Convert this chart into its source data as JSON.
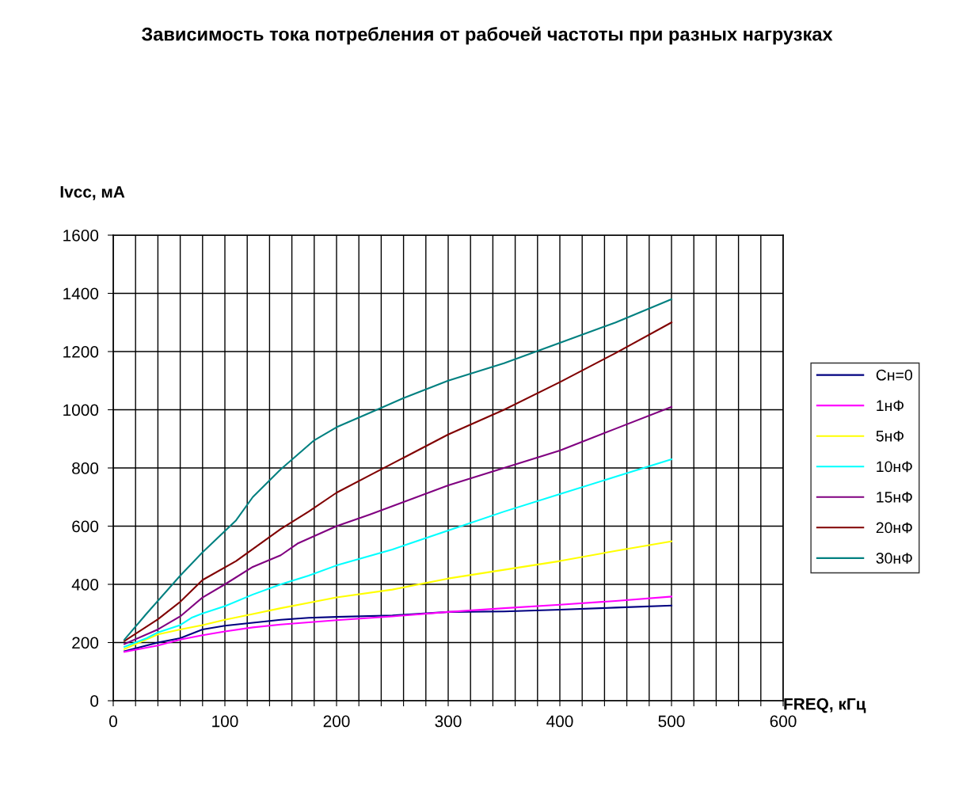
{
  "chart_data": {
    "type": "line",
    "title": "Зависимость тока потребления от рабочей частоты при разных нагрузках",
    "xlabel": "FREQ, кГц",
    "ylabel": "Ivcc, мА",
    "xlim": [
      0,
      600
    ],
    "ylim": [
      0,
      1600
    ],
    "xticks": [
      0,
      {
        "value": 20,
        "label": null
      },
      {
        "value": 40,
        "label": null
      },
      {
        "value": 60,
        "label": null
      },
      {
        "value": 80,
        "label": null
      },
      100,
      {
        "value": 120,
        "label": null
      },
      {
        "value": 140,
        "label": null
      },
      {
        "value": 160,
        "label": null
      },
      {
        "value": 180,
        "label": null
      },
      200,
      {
        "value": 220,
        "label": null
      },
      {
        "value": 240,
        "label": null
      },
      {
        "value": 260,
        "label": null
      },
      {
        "value": 280,
        "label": null
      },
      300,
      {
        "value": 320,
        "label": null
      },
      {
        "value": 340,
        "label": null
      },
      {
        "value": 360,
        "label": null
      },
      {
        "value": 380,
        "label": null
      },
      400,
      {
        "value": 420,
        "label": null
      },
      {
        "value": 440,
        "label": null
      },
      {
        "value": 460,
        "label": null
      },
      {
        "value": 480,
        "label": null
      },
      500,
      {
        "value": 520,
        "label": null
      },
      {
        "value": 540,
        "label": null
      },
      {
        "value": 560,
        "label": null
      },
      {
        "value": 580,
        "label": null
      },
      600
    ],
    "yticks": [
      0,
      200,
      400,
      600,
      800,
      1000,
      1200,
      1400,
      1600
    ],
    "grid": true,
    "legend": "right",
    "marker": "none",
    "line_style": "solid",
    "series": [
      {
        "name": "Cн=0",
        "color": "#000080",
        "x": [
          10,
          40,
          60,
          80,
          100,
          110,
          125,
          150,
          175,
          200,
          250,
          300,
          350,
          400,
          450,
          500
        ],
        "values": [
          170,
          200,
          215,
          245,
          258,
          262,
          268,
          278,
          285,
          288,
          293,
          305,
          307,
          313,
          320,
          327
        ]
      },
      {
        "name": "1нФ",
        "color": "#ff00ff",
        "x": [
          10,
          40,
          60,
          80,
          100,
          125,
          150,
          200,
          250,
          300,
          350,
          400,
          450,
          500
        ],
        "values": [
          168,
          190,
          210,
          225,
          238,
          252,
          262,
          277,
          290,
          305,
          318,
          330,
          343,
          358
        ]
      },
      {
        "name": "5нФ",
        "color": "#ffff00",
        "x": [
          10,
          40,
          60,
          80,
          100,
          125,
          150,
          200,
          250,
          300,
          350,
          400,
          450,
          500
        ],
        "values": [
          178,
          228,
          245,
          260,
          278,
          298,
          318,
          355,
          382,
          420,
          450,
          480,
          515,
          548
        ]
      },
      {
        "name": "10нФ",
        "color": "#00ffff",
        "x": [
          10,
          30,
          40,
          60,
          70,
          80,
          100,
          125,
          150,
          175,
          200,
          250,
          300,
          350,
          400,
          450,
          500
        ],
        "values": [
          185,
          215,
          235,
          260,
          285,
          300,
          325,
          365,
          400,
          430,
          465,
          520,
          585,
          650,
          710,
          770,
          830
        ]
      },
      {
        "name": "15нФ",
        "color": "#800080",
        "x": [
          10,
          40,
          60,
          80,
          100,
          125,
          150,
          165,
          200,
          230,
          300,
          350,
          400,
          450,
          500
        ],
        "values": [
          195,
          245,
          290,
          355,
          400,
          460,
          500,
          540,
          600,
          640,
          740,
          800,
          860,
          935,
          1010
        ]
      },
      {
        "name": "20нФ",
        "color": "#800000",
        "x": [
          10,
          40,
          60,
          80,
          110,
          150,
          175,
          200,
          230,
          300,
          350,
          400,
          450,
          500
        ],
        "values": [
          205,
          280,
          340,
          415,
          480,
          590,
          650,
          715,
          775,
          915,
          1000,
          1095,
          1195,
          1300
        ]
      },
      {
        "name": "30нФ",
        "color": "#008080",
        "x": [
          10,
          30,
          60,
          80,
          110,
          125,
          150,
          180,
          200,
          230,
          260,
          300,
          350,
          400,
          450,
          500
        ],
        "values": [
          210,
          300,
          430,
          510,
          620,
          700,
          795,
          895,
          940,
          990,
          1040,
          1100,
          1160,
          1230,
          1300,
          1380
        ]
      }
    ]
  }
}
